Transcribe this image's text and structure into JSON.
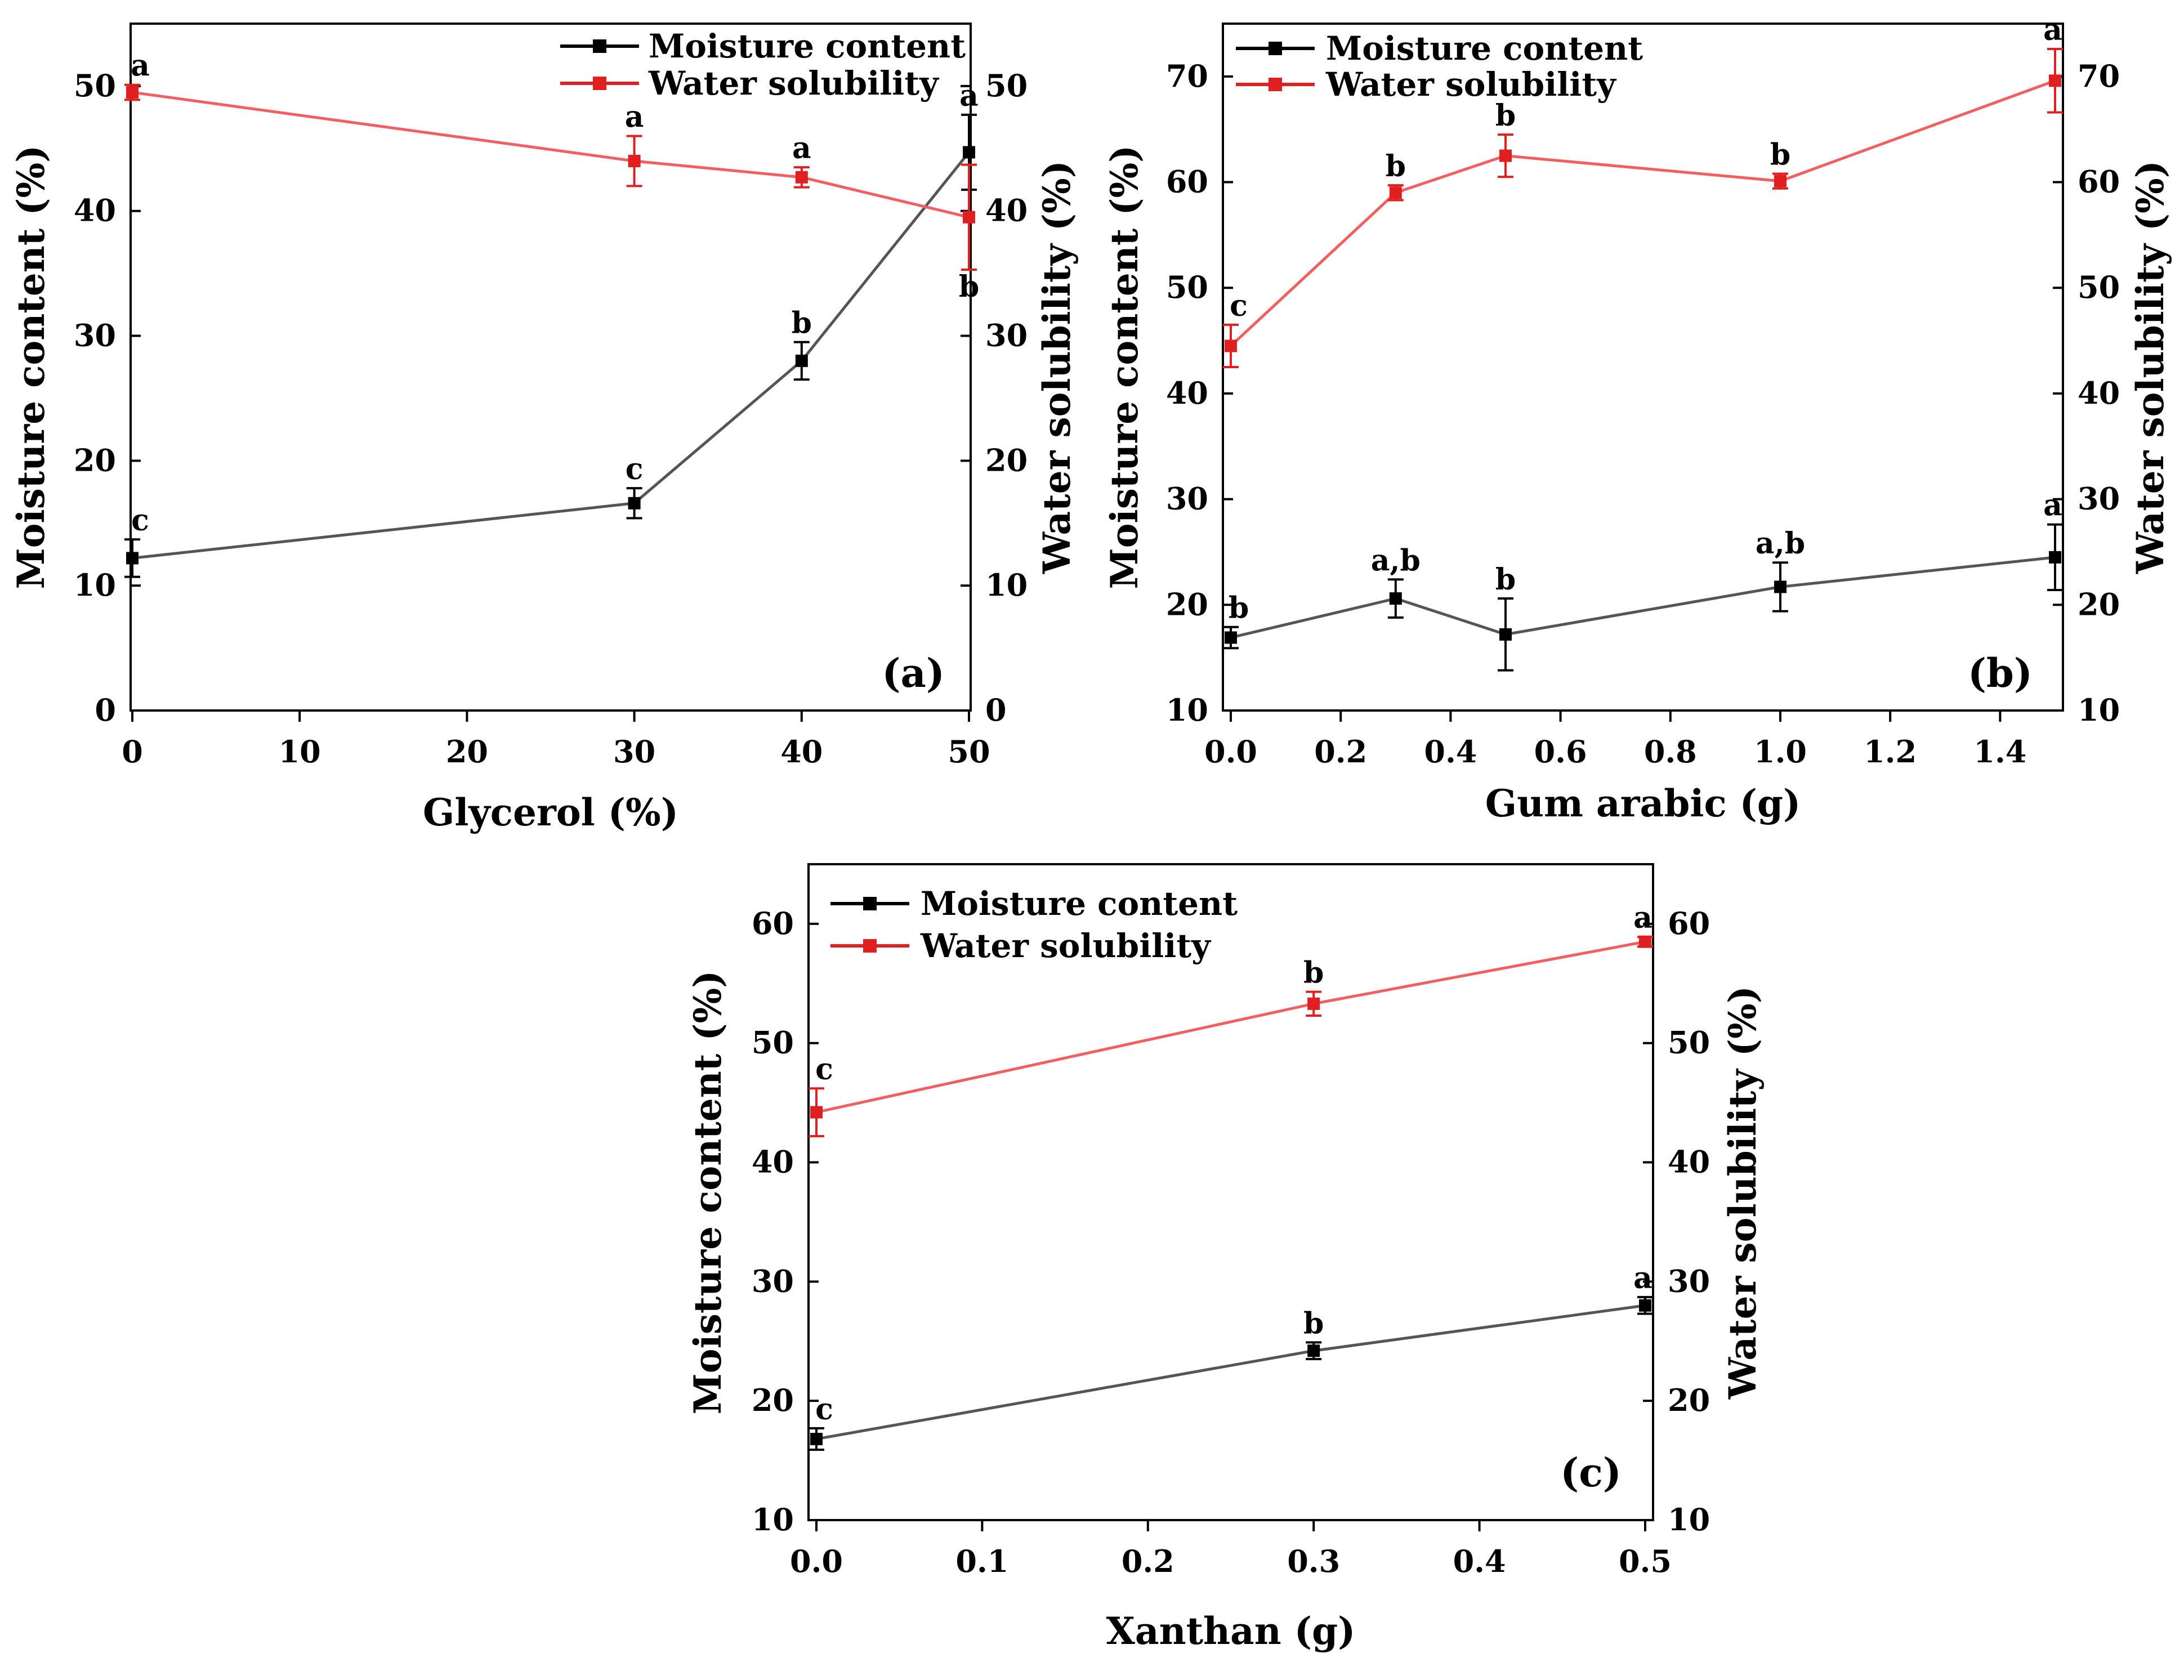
{
  "chart_data": [
    {
      "type": "line",
      "panel_label": "(a)",
      "xlabel": "Glycerol (%)",
      "ylabel_left": "Moisture content (%)",
      "ylabel_right": "Water solubility (%)",
      "xlim": [
        0,
        50
      ],
      "xticks": [
        0,
        10,
        20,
        30,
        40,
        50
      ],
      "ylim_left": [
        0,
        55
      ],
      "yticks_left": [
        0,
        10,
        20,
        30,
        40,
        50
      ],
      "ylim_right": [
        0,
        55
      ],
      "yticks_right": [
        0,
        10,
        20,
        30,
        40,
        50
      ],
      "legend": [
        "Moisture content",
        "Water solubility"
      ],
      "legend_position": "top-right",
      "series": [
        {
          "name": "Moisture content",
          "color": "#555555",
          "marker_color": "#000000",
          "axis": "left",
          "x": [
            0,
            30,
            40,
            50
          ],
          "values": [
            12.2,
            16.6,
            28.0,
            44.7
          ],
          "errors": [
            1.5,
            1.2,
            1.5,
            3.0
          ],
          "letters": [
            "c",
            "c",
            "b",
            "a"
          ]
        },
        {
          "name": "Water solubility",
          "color": "#f06060",
          "marker_color": "#e02020",
          "axis": "right",
          "x": [
            0,
            30,
            40,
            50
          ],
          "values": [
            49.5,
            44.0,
            42.7,
            39.5
          ],
          "errors": [
            0.6,
            2.0,
            0.8,
            4.2
          ],
          "letters": [
            "a",
            "a",
            "a",
            "b"
          ]
        }
      ]
    },
    {
      "type": "line",
      "panel_label": "(b)",
      "xlabel": "Gum arabic (g)",
      "ylabel_left": "Moisture content (%)",
      "ylabel_right": "Water solubility (%)",
      "xlim": [
        0,
        1.5
      ],
      "xticks": [
        "0.0",
        "0.2",
        "0.4",
        "0.6",
        "0.8",
        "1.0",
        "1.2",
        "1.4"
      ],
      "ylim_left": [
        10,
        75
      ],
      "yticks_left": [
        10,
        20,
        30,
        40,
        50,
        60,
        70
      ],
      "ylim_right": [
        10,
        75
      ],
      "yticks_right": [
        10,
        20,
        30,
        40,
        50,
        60,
        70
      ],
      "legend": [
        "Moisture content",
        "Water solubility"
      ],
      "legend_position": "top-left",
      "series": [
        {
          "name": "Moisture content",
          "color": "#555555",
          "marker_color": "#000000",
          "axis": "left",
          "x": [
            0,
            0.3,
            0.5,
            1.0,
            1.5
          ],
          "values": [
            16.9,
            20.6,
            17.2,
            21.7,
            24.5
          ],
          "errors": [
            1.0,
            1.8,
            3.4,
            2.3,
            3.1
          ],
          "letters": [
            "b",
            "a,b",
            "b",
            "a,b",
            "a"
          ]
        },
        {
          "name": "Water solubility",
          "color": "#f06060",
          "marker_color": "#e02020",
          "axis": "right",
          "x": [
            0,
            0.3,
            0.5,
            1.0,
            1.5
          ],
          "values": [
            44.5,
            59.0,
            62.5,
            60.1,
            69.6
          ],
          "errors": [
            2.0,
            0.7,
            2.0,
            0.7,
            3.0
          ],
          "letters": [
            "c",
            "b",
            "b",
            "b",
            "a"
          ]
        }
      ]
    },
    {
      "type": "line",
      "panel_label": "(c)",
      "xlabel": "Xanthan (g)",
      "ylabel_left": "Moisture content (%)",
      "ylabel_right": "Water solubility (%)",
      "xlim": [
        0,
        0.5
      ],
      "xticks": [
        "0.0",
        "0.1",
        "0.2",
        "0.3",
        "0.4",
        "0.5"
      ],
      "ylim_left": [
        10,
        65
      ],
      "yticks_left": [
        10,
        20,
        30,
        40,
        50,
        60
      ],
      "ylim_right": [
        10,
        65
      ],
      "yticks_right": [
        10,
        20,
        30,
        40,
        50,
        60
      ],
      "legend": [
        "Moisture content",
        "Water solubility"
      ],
      "legend_position": "top-left",
      "series": [
        {
          "name": "Moisture content",
          "color": "#555555",
          "marker_color": "#000000",
          "axis": "left",
          "x": [
            0,
            0.3,
            0.5
          ],
          "values": [
            16.8,
            24.2,
            28.0
          ],
          "errors": [
            0.9,
            0.7,
            0.7
          ],
          "letters": [
            "c",
            "b",
            "a"
          ]
        },
        {
          "name": "Water solubility",
          "color": "#f06060",
          "marker_color": "#e02020",
          "axis": "right",
          "x": [
            0,
            0.3,
            0.5
          ],
          "values": [
            44.2,
            53.3,
            58.5
          ],
          "errors": [
            2.0,
            1.0,
            0.4
          ],
          "letters": [
            "c",
            "b",
            "a"
          ]
        }
      ]
    }
  ]
}
